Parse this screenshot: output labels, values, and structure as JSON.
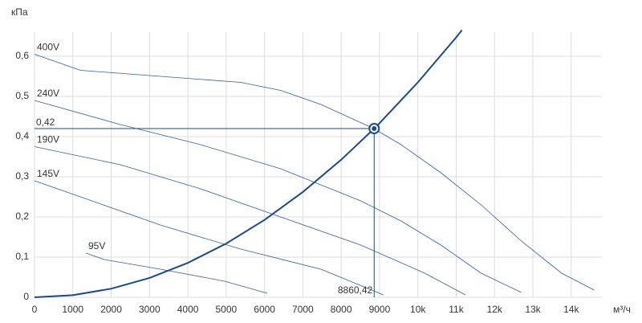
{
  "chart_data": {
    "type": "line",
    "y_label": "кПа",
    "x_label": "м³/ч",
    "xlim": [
      0,
      14800
    ],
    "ylim": [
      0,
      0.66
    ],
    "grid": true,
    "xticks": [
      0,
      1000,
      2000,
      3000,
      4000,
      5000,
      6000,
      7000,
      8000,
      9000,
      {
        "value": 10000,
        "label": "10k"
      },
      {
        "value": 11000,
        "label": "11k"
      },
      {
        "value": 12000,
        "label": "12k"
      },
      {
        "value": 13000,
        "label": "13k"
      },
      {
        "value": 14000,
        "label": "14k"
      }
    ],
    "yticks": [
      0,
      {
        "value": 0.1,
        "label": "0,1"
      },
      {
        "value": 0.2,
        "label": "0,2"
      },
      {
        "value": 0.3,
        "label": "0,3"
      },
      {
        "value": 0.4,
        "label": "0,4"
      },
      {
        "value": 0.5,
        "label": "0,5"
      },
      {
        "value": 0.6,
        "label": "0,6"
      }
    ],
    "series": [
      {
        "name": "400V",
        "color": "#2f5f9e",
        "x": [
          0,
          1200,
          3280,
          5380,
          6420,
          7470,
          8850,
          9560,
          10600,
          11650,
          12700,
          13750,
          14600
        ],
        "values": [
          0.605,
          0.565,
          0.55,
          0.535,
          0.515,
          0.48,
          0.42,
          0.38,
          0.31,
          0.23,
          0.14,
          0.06,
          0.018
        ]
      },
      {
        "name": "240V",
        "color": "#2f5f9e",
        "x": [
          0,
          2240,
          4330,
          6420,
          8510,
          9560,
          10600,
          11650,
          12700
        ],
        "values": [
          0.49,
          0.43,
          0.38,
          0.32,
          0.24,
          0.19,
          0.13,
          0.06,
          0.012
        ]
      },
      {
        "name": "190V",
        "color": "#2f5f9e",
        "x": [
          0,
          2240,
          4330,
          6420,
          8510,
          10180,
          11240
        ],
        "values": [
          0.375,
          0.33,
          0.27,
          0.2,
          0.13,
          0.06,
          0.006
        ]
      },
      {
        "name": "145V",
        "color": "#2f5f9e",
        "x": [
          0,
          1200,
          3280,
          5380,
          7470,
          9100
        ],
        "values": [
          0.29,
          0.25,
          0.18,
          0.12,
          0.07,
          0.006
        ]
      },
      {
        "name": "95V",
        "color": "#2f5f9e",
        "x": [
          1340,
          1820,
          3280,
          4960,
          6070
        ],
        "values": [
          0.11,
          0.094,
          0.07,
          0.04,
          0.01
        ]
      }
    ],
    "system_curve": {
      "color": "#1b4a87",
      "x": [
        0,
        1000,
        2000,
        3000,
        4000,
        5000,
        6000,
        7000,
        8000,
        8860.42,
        9000,
        10000,
        11000,
        11150
      ],
      "values": [
        0,
        0.00535,
        0.0214,
        0.0481,
        0.0856,
        0.1337,
        0.1926,
        0.2621,
        0.3424,
        0.42,
        0.4333,
        0.535,
        0.647,
        0.665
      ]
    },
    "operating_point": {
      "color": "#1b4a87",
      "x": {
        "value": 8860.42,
        "label": "8860,42"
      },
      "y": {
        "value": 0.42,
        "label": "0,42"
      }
    }
  }
}
